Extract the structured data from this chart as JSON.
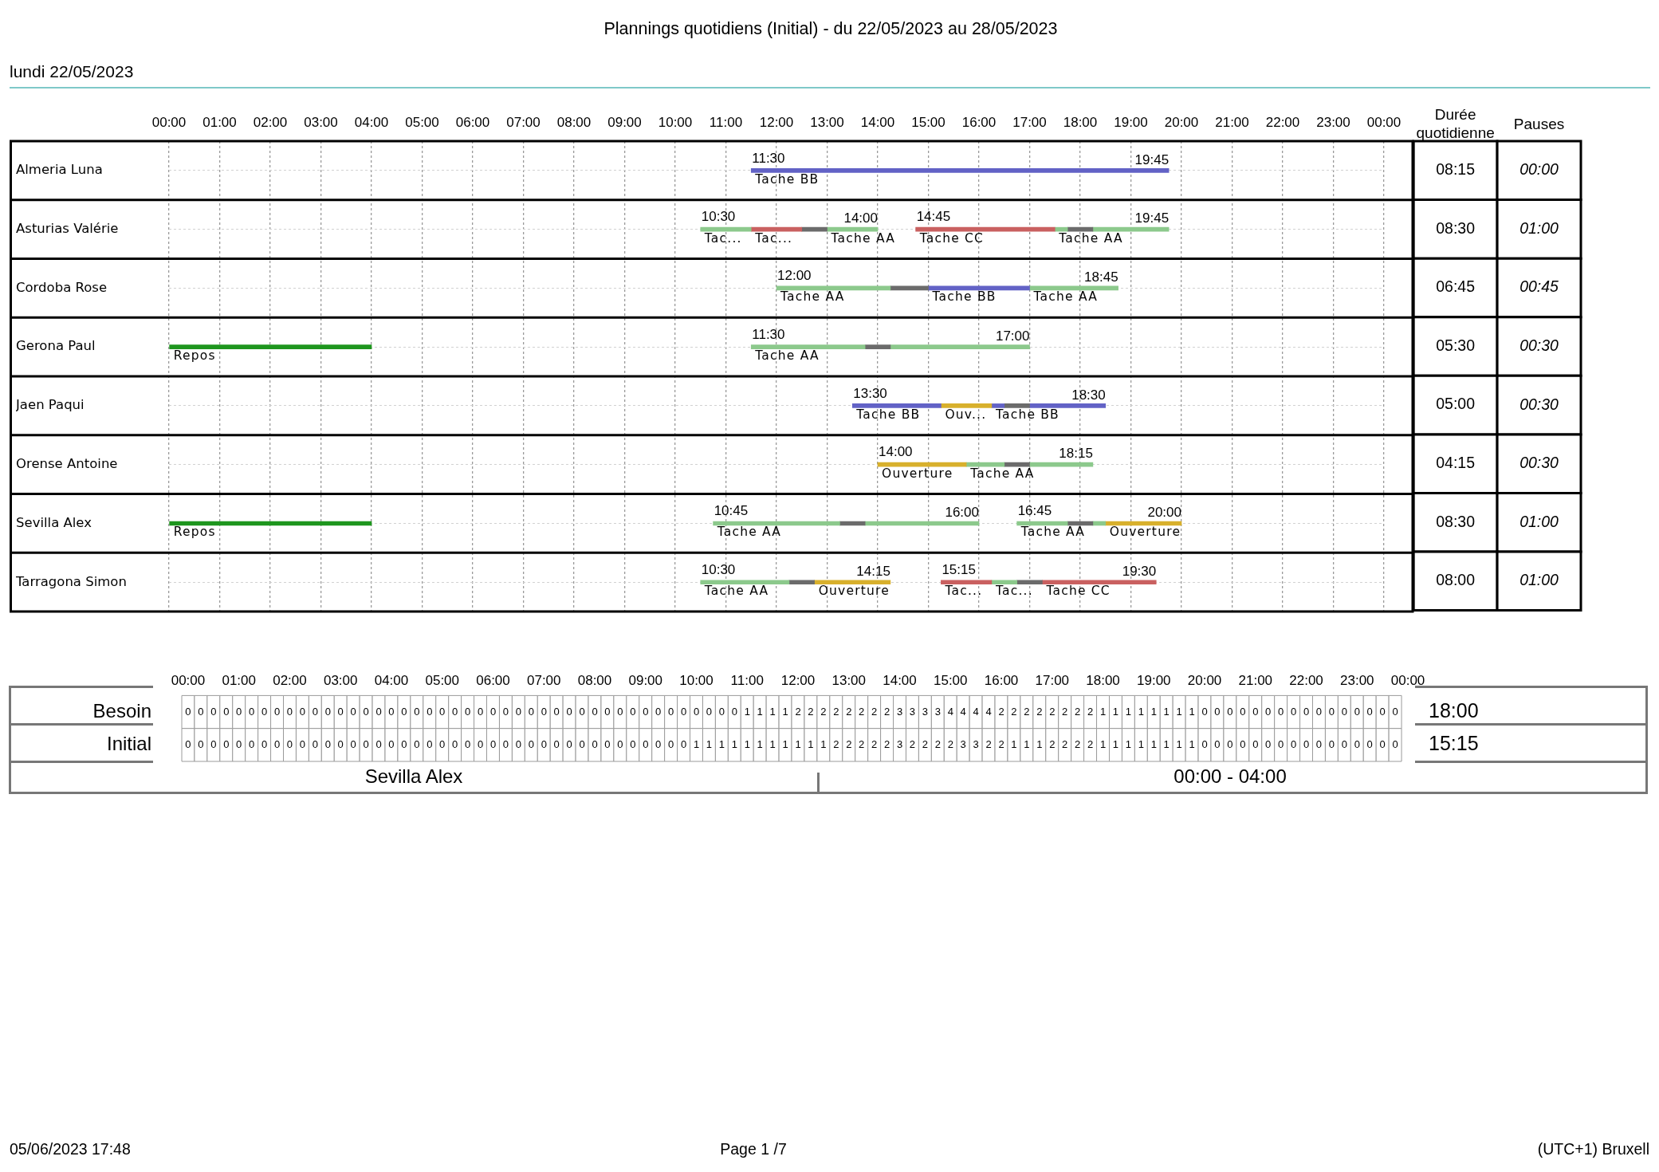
{
  "chart_data": [
    {
      "type": "bar",
      "orientation": "horizontal",
      "title": "Plannings quotidiens (Initial) - du 22/05/2023 au 28/05/2023",
      "subtitle": "lundi 22/05/2023",
      "categories": [
        "Almeria Luna",
        "Asturias Valérie",
        "Cordoba Rose",
        "Gerona Paul",
        "Jaen Paqui",
        "Orense Antoine",
        "Sevilla Alex",
        "Tarragona Simon"
      ],
      "series": [
        {
          "base": [
            11.5,
            10.5,
            12,
            0,
            13.5,
            14,
            0,
            10.5
          ],
          "values": [
            8.25,
            1,
            2.25,
            4,
            1.75,
            1.75,
            4,
            1.75
          ],
          "colors": [
            "#6262c6",
            "#8cc98c",
            "#8cc98c",
            "#1e961e",
            "#6262c6",
            "#d8b02c",
            "#1e961e",
            "#8cc98c"
          ],
          "value_labels": [
            "Tache BB",
            "Tac...",
            "Tache AA",
            "Repos",
            "Tache BB",
            "Ouverture",
            "Repos",
            "Tache AA"
          ]
        },
        {
          "base": [
            null,
            11.5,
            14.25,
            11.5,
            15.25,
            15.75,
            10.75,
            12.25
          ],
          "values": [
            null,
            1,
            0.75,
            2.25,
            1,
            0.75,
            2.5,
            0.5
          ],
          "colors": [
            null,
            "#c96060",
            "#6b6b6b",
            "#8cc98c",
            "#d8b02c",
            "#8cc98c",
            "#8cc98c",
            "#6b6b6b"
          ],
          "value_labels": [
            null,
            "Tac...",
            null,
            "Tache AA",
            "Ouv...",
            "Tache AA",
            "Tache AA",
            null
          ]
        },
        {
          "base": [
            null,
            12.5,
            15,
            13.75,
            16.25,
            16.5,
            13.25,
            12.75
          ],
          "values": [
            null,
            0.5,
            2,
            0.5,
            0.25,
            0.5,
            0.5,
            1.5
          ],
          "colors": [
            null,
            "#6b6b6b",
            "#6262c6",
            "#6b6b6b",
            "#6262c6",
            "#6b6b6b",
            "#6b6b6b",
            "#d8b02c"
          ],
          "value_labels": [
            null,
            null,
            "Tache BB",
            null,
            "Tache BB",
            null,
            null,
            "Ouverture"
          ]
        },
        {
          "base": [
            null,
            13,
            17,
            14.25,
            16.5,
            17,
            13.75,
            15.25
          ],
          "values": [
            null,
            1,
            1.75,
            2.75,
            0.5,
            1.25,
            2.25,
            1
          ],
          "colors": [
            null,
            "#8cc98c",
            "#8cc98c",
            "#8cc98c",
            "#6b6b6b",
            "#8cc98c",
            "#8cc98c",
            "#c96060"
          ],
          "value_labels": [
            null,
            "Tache AA",
            "Tache AA",
            null,
            null,
            null,
            null,
            "Tac..."
          ]
        },
        {
          "base": [
            null,
            14.75,
            null,
            null,
            17,
            null,
            16.75,
            16.25
          ],
          "values": [
            null,
            2.75,
            null,
            null,
            1.5,
            null,
            1,
            0.5
          ],
          "colors": [
            null,
            "#c96060",
            null,
            null,
            "#6262c6",
            null,
            "#8cc98c",
            "#8cc98c"
          ],
          "value_labels": [
            null,
            "Tache CC",
            null,
            null,
            null,
            null,
            "Tache AA",
            "Tac..."
          ]
        },
        {
          "base": [
            null,
            17.5,
            null,
            null,
            null,
            null,
            17.75,
            16.75
          ],
          "values": [
            null,
            0.25,
            null,
            null,
            null,
            null,
            0.5,
            0.5
          ],
          "colors": [
            null,
            "#8cc98c",
            null,
            null,
            null,
            null,
            "#6b6b6b",
            "#6b6b6b"
          ],
          "value_labels": [
            null,
            "Tache AA",
            null,
            null,
            null,
            null,
            null,
            null
          ]
        },
        {
          "base": [
            null,
            17.75,
            null,
            null,
            null,
            null,
            18.25,
            17.25
          ],
          "values": [
            null,
            0.5,
            null,
            null,
            null,
            null,
            0.25,
            2.25
          ],
          "colors": [
            null,
            "#6b6b6b",
            null,
            null,
            null,
            null,
            "#8cc98c",
            "#c96060"
          ],
          "value_labels": [
            null,
            null,
            null,
            null,
            null,
            null,
            null,
            "Tache CC"
          ]
        },
        {
          "base": [
            null,
            18.25,
            null,
            null,
            null,
            null,
            18.5,
            null
          ],
          "values": [
            null,
            1.5,
            null,
            null,
            null,
            null,
            1.5,
            null
          ],
          "colors": [
            null,
            "#8cc98c",
            null,
            null,
            null,
            null,
            "#d8b02c",
            null
          ],
          "value_labels": [
            null,
            null,
            null,
            null,
            null,
            null,
            "Ouverture",
            null
          ]
        }
      ],
      "xlim": [
        0,
        24
      ],
      "xticks": [
        {
          "value": 0,
          "label": "00:00"
        },
        {
          "value": 1,
          "label": "01:00"
        },
        {
          "value": 2,
          "label": "02:00"
        },
        {
          "value": 3,
          "label": "03:00"
        },
        {
          "value": 4,
          "label": "04:00"
        },
        {
          "value": 5,
          "label": "05:00"
        },
        {
          "value": 6,
          "label": "06:00"
        },
        {
          "value": 7,
          "label": "07:00"
        },
        {
          "value": 8,
          "label": "08:00"
        },
        {
          "value": 9,
          "label": "09:00"
        },
        {
          "value": 10,
          "label": "10:00"
        },
        {
          "value": 11,
          "label": "11:00"
        },
        {
          "value": 12,
          "label": "12:00"
        },
        {
          "value": 13,
          "label": "13:00"
        },
        {
          "value": 14,
          "label": "14:00"
        },
        {
          "value": 15,
          "label": "15:00"
        },
        {
          "value": 16,
          "label": "16:00"
        },
        {
          "value": 17,
          "label": "17:00"
        },
        {
          "value": 18,
          "label": "18:00"
        },
        {
          "value": 19,
          "label": "19:00"
        },
        {
          "value": 20,
          "label": "20:00"
        },
        {
          "value": 21,
          "label": "21:00"
        },
        {
          "value": 22,
          "label": "22:00"
        },
        {
          "value": 23,
          "label": "23:00"
        },
        {
          "value": 24,
          "label": "00:00"
        }
      ],
      "grid": true,
      "annotations": [
        {
          "text": "11:30",
          "x": 11.5,
          "y": "Almeria Luna"
        },
        {
          "text": "19:45",
          "x": 19.75,
          "y": "Almeria Luna"
        },
        {
          "text": "10:30",
          "x": 10.5,
          "y": "Asturias Valérie"
        },
        {
          "text": "14:00",
          "x": 14,
          "y": "Asturias Valérie"
        },
        {
          "text": "14:45",
          "x": 14.75,
          "y": "Asturias Valérie"
        },
        {
          "text": "19:45",
          "x": 19.75,
          "y": "Asturias Valérie"
        },
        {
          "text": "12:00",
          "x": 12,
          "y": "Cordoba Rose"
        },
        {
          "text": "18:45",
          "x": 18.75,
          "y": "Cordoba Rose"
        },
        {
          "text": "11:30",
          "x": 11.5,
          "y": "Gerona Paul"
        },
        {
          "text": "17:00",
          "x": 17,
          "y": "Gerona Paul"
        },
        {
          "text": "13:30",
          "x": 13.5,
          "y": "Jaen Paqui"
        },
        {
          "text": "18:30",
          "x": 18.5,
          "y": "Jaen Paqui"
        },
        {
          "text": "14:00",
          "x": 14,
          "y": "Orense Antoine"
        },
        {
          "text": "18:15",
          "x": 18.25,
          "y": "Orense Antoine"
        },
        {
          "text": "10:45",
          "x": 10.75,
          "y": "Sevilla Alex"
        },
        {
          "text": "16:00",
          "x": 16,
          "y": "Sevilla Alex"
        },
        {
          "text": "16:45",
          "x": 16.75,
          "y": "Sevilla Alex"
        },
        {
          "text": "20:00",
          "x": 20,
          "y": "Sevilla Alex"
        },
        {
          "text": "10:30",
          "x": 10.5,
          "y": "Tarragona Simon"
        },
        {
          "text": "14:15",
          "x": 14.25,
          "y": "Tarragona Simon"
        },
        {
          "text": "15:15",
          "x": 15.25,
          "y": "Tarragona Simon"
        },
        {
          "text": "19:30",
          "x": 19.5,
          "y": "Tarragona Simon"
        }
      ]
    },
    {
      "type": "heatmap",
      "categories": [
        "Durée quotidienne",
        "Pauses"
      ],
      "y_categories": [
        null,
        null,
        null,
        null,
        null,
        null,
        null,
        null
      ],
      "cells": [
        [
          8.25,
          0
        ],
        [
          8.5,
          1
        ],
        [
          6.75,
          0.75
        ],
        [
          5.5,
          0.5
        ],
        [
          5,
          0.5
        ],
        [
          4.25,
          0.5
        ],
        [
          8.5,
          1
        ],
        [
          8,
          1
        ]
      ],
      "cell_labels": [
        [
          "08:15",
          "00:00"
        ],
        [
          "08:30",
          "01:00"
        ],
        [
          "06:45",
          "00:45"
        ],
        [
          "05:30",
          "00:30"
        ],
        [
          "05:00",
          "00:30"
        ],
        [
          "04:15",
          "00:30"
        ],
        [
          "08:30",
          "01:00"
        ],
        [
          "08:00",
          "01:00"
        ]
      ]
    },
    {
      "type": "heatmap",
      "categories": [
        "00:00",
        null,
        null,
        null,
        "01:00",
        null,
        null,
        null,
        "02:00",
        null,
        null,
        null,
        "03:00",
        null,
        null,
        null,
        "04:00",
        null,
        null,
        null,
        "05:00",
        null,
        null,
        null,
        "06:00",
        null,
        null,
        null,
        "07:00",
        null,
        null,
        null,
        "08:00",
        null,
        null,
        null,
        "09:00",
        null,
        null,
        null,
        "10:00",
        null,
        null,
        null,
        "11:00",
        null,
        null,
        null,
        "12:00",
        null,
        null,
        null,
        "13:00",
        null,
        null,
        null,
        "14:00",
        null,
        null,
        null,
        "15:00",
        null,
        null,
        null,
        "16:00",
        null,
        null,
        null,
        "17:00",
        null,
        null,
        null,
        "18:00",
        null,
        null,
        null,
        "19:00",
        null,
        null,
        null,
        "20:00",
        null,
        null,
        null,
        "21:00",
        null,
        null,
        null,
        "22:00",
        null,
        null,
        null,
        "23:00",
        null,
        null,
        null,
        "00:00"
      ],
      "y_categories": [
        "Besoin",
        "Initial"
      ],
      "y2_categories": [
        "18:00",
        "15:15"
      ],
      "cells": [
        [
          0,
          0,
          0,
          0,
          0,
          0,
          0,
          0,
          0,
          0,
          0,
          0,
          0,
          0,
          0,
          0,
          0,
          0,
          0,
          0,
          0,
          0,
          0,
          0,
          0,
          0,
          0,
          0,
          0,
          0,
          0,
          0,
          0,
          0,
          0,
          0,
          0,
          0,
          0,
          0,
          0,
          0,
          0,
          0,
          1,
          1,
          1,
          1,
          2,
          2,
          2,
          2,
          2,
          2,
          2,
          2,
          3,
          3,
          3,
          3,
          4,
          4,
          4,
          4,
          2,
          2,
          2,
          2,
          2,
          2,
          2,
          2,
          1,
          1,
          1,
          1,
          1,
          1,
          1,
          1,
          0,
          0,
          0,
          0,
          0,
          0,
          0,
          0,
          0,
          0,
          0,
          0,
          0,
          0,
          0,
          0,
          null
        ],
        [
          0,
          0,
          0,
          0,
          0,
          0,
          0,
          0,
          0,
          0,
          0,
          0,
          0,
          0,
          0,
          0,
          0,
          0,
          0,
          0,
          0,
          0,
          0,
          0,
          0,
          0,
          0,
          0,
          0,
          0,
          0,
          0,
          0,
          0,
          0,
          0,
          0,
          0,
          0,
          0,
          1,
          1,
          1,
          1,
          1,
          1,
          1,
          1,
          1,
          1,
          1,
          2,
          2,
          2,
          2,
          2,
          3,
          2,
          2,
          2,
          2,
          3,
          3,
          2,
          2,
          1,
          1,
          1,
          2,
          2,
          2,
          2,
          1,
          1,
          1,
          1,
          1,
          1,
          1,
          1,
          0,
          0,
          0,
          0,
          0,
          0,
          0,
          0,
          0,
          0,
          0,
          0,
          0,
          0,
          0,
          0,
          null
        ]
      ],
      "data_labels": true,
      "annotations": [
        "Sevilla Alex",
        "00:00 - 04:00",
        "05/06/2023 17:48",
        "Page 1 /7",
        "(UTC+1) Bruxell"
      ]
    }
  ]
}
